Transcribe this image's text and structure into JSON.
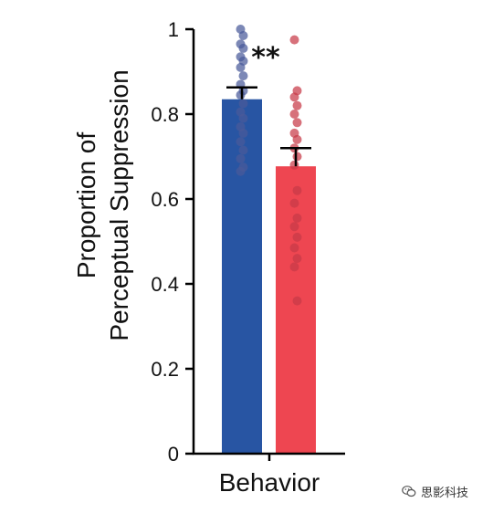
{
  "chart_data": {
    "type": "bar",
    "categories": [
      "Behavior"
    ],
    "xlabel": "Behavior",
    "ylabel_lines": [
      "Proportion of",
      "Perceptual Suppression"
    ],
    "ylim": [
      0,
      1
    ],
    "yticks": [
      0,
      0.2,
      0.4,
      0.6,
      0.8,
      1
    ],
    "ytick_labels": [
      "0",
      "0.2",
      "0.4",
      "0.6",
      "0.8",
      "1"
    ],
    "significance_label": "**",
    "grid": false,
    "legend": "none",
    "series": [
      {
        "color": "#2855a3",
        "dot_color": "#4a5a9a",
        "value": 0.835,
        "error": 0.028,
        "points": [
          1.0,
          0.985,
          0.965,
          0.955,
          0.935,
          0.925,
          0.91,
          0.89,
          0.87,
          0.855,
          0.845,
          0.825,
          0.805,
          0.79,
          0.77,
          0.755,
          0.735,
          0.715,
          0.695,
          0.675,
          0.665
        ]
      },
      {
        "color": "#ee4651",
        "dot_color": "#c83a48",
        "value": 0.677,
        "error": 0.043,
        "points": [
          0.975,
          0.855,
          0.84,
          0.82,
          0.8,
          0.78,
          0.755,
          0.74,
          0.72,
          0.7,
          0.68,
          0.62,
          0.59,
          0.555,
          0.535,
          0.51,
          0.485,
          0.46,
          0.44,
          0.36
        ]
      }
    ]
  },
  "watermark": {
    "text": "思影科技",
    "icon": "wechat-icon"
  }
}
